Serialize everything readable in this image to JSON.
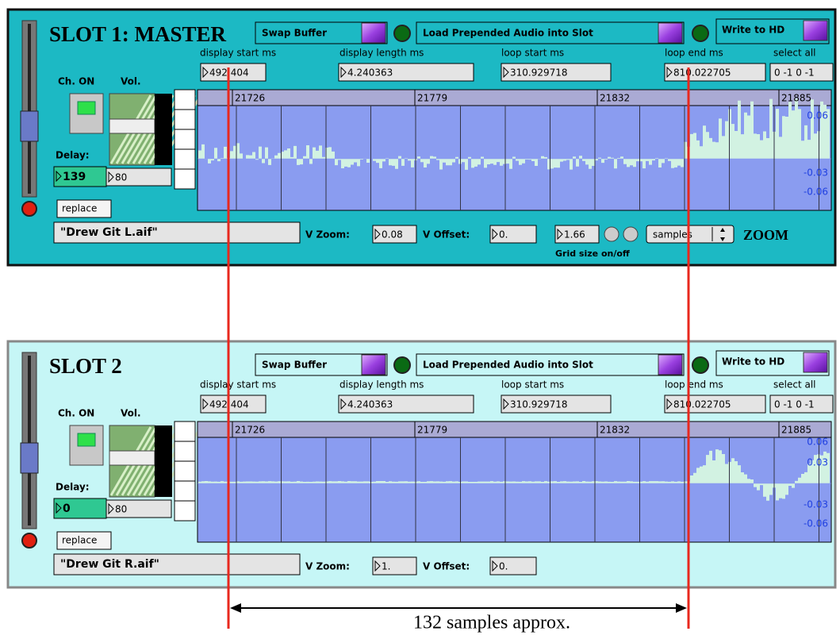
{
  "slots": [
    {
      "title": "SLOT 1: MASTER",
      "buttons": {
        "swap": "Swap Buffer",
        "load": "Load Prepended Audio into Slot",
        "write": "Write to HD"
      },
      "labels": [
        "display start ms",
        "display length ms",
        "loop start ms",
        "loop end ms",
        "select all"
      ],
      "fields": [
        "492.404",
        "4.240363",
        "310.929718",
        "810.022705",
        "0 -1 0 -1"
      ],
      "ch_on": "Ch. ON",
      "vol": "Vol.",
      "delay_label": "Delay:",
      "delay": "139",
      "vol_value": "80",
      "replace": "replace",
      "filename": "\"Drew Git L.aif\"",
      "v_zoom_label": "V Zoom:",
      "v_zoom": "0.08",
      "v_offset_label": "V Offset:",
      "v_offset": "0.",
      "grid_size": "1.66",
      "grid_mode": "samples",
      "zoom_label": "ZOOM",
      "grid_label": "Grid size on/off",
      "ruler": [
        "21726",
        "21779",
        "21832",
        "21885"
      ],
      "scale": [
        "0.06",
        "-0.03",
        "-0.06"
      ]
    },
    {
      "title": "SLOT 2",
      "buttons": {
        "swap": "Swap Buffer",
        "load": "Load Prepended Audio into Slot",
        "write": "Write to HD"
      },
      "labels": [
        "display start ms",
        "display length ms",
        "loop start ms",
        "loop end ms",
        "select all"
      ],
      "fields": [
        "492.404",
        "4.240363",
        "310.929718",
        "810.022705",
        "0 -1 0 -1"
      ],
      "ch_on": "Ch. ON",
      "vol": "Vol.",
      "delay_label": "Delay:",
      "delay": "0",
      "vol_value": "80",
      "replace": "replace",
      "filename": "\"Drew Git R.aif\"",
      "v_zoom_label": "V Zoom:",
      "v_zoom": "1.",
      "v_offset_label": "V Offset:",
      "v_offset": "0.",
      "ruler": [
        "21726",
        "21779",
        "21832",
        "21885"
      ],
      "scale": [
        "0.06",
        "0.03",
        "-0.03",
        "-0.06"
      ]
    }
  ],
  "annotation": "132 samples approx."
}
